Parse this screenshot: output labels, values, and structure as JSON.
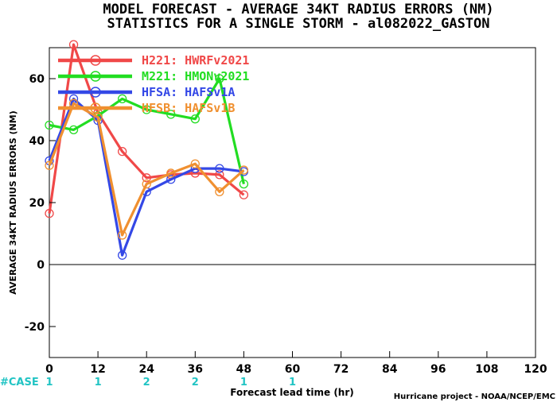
{
  "chart_data": {
    "type": "line",
    "title": [
      "MODEL FORECAST - AVERAGE 34KT RADIUS ERRORS (NM)",
      "STATISTICS FOR A SINGLE STORM - al082022_GASTON"
    ],
    "xlabel": "Forecast lead time (hr)",
    "ylabel": "AVERAGE 34KT RADIUS ERRORS (NM)",
    "xlim": [
      0,
      120
    ],
    "ylim": [
      -30,
      70
    ],
    "xticks": [
      0,
      12,
      24,
      36,
      48,
      60,
      72,
      84,
      96,
      108,
      120
    ],
    "yticks": [
      -20,
      0,
      20,
      40,
      60
    ],
    "zero_line": true,
    "legend_position": "top-left",
    "series": [
      {
        "name": "H221: HWRFv2021",
        "color": "#f04848",
        "x": [
          0,
          6,
          12,
          18,
          24,
          30,
          36,
          42,
          48
        ],
        "values": [
          16.5,
          71,
          49,
          36.5,
          28,
          29,
          29.5,
          29,
          22.5
        ]
      },
      {
        "name": "M221: HMONv2021",
        "color": "#22dd22",
        "x": [
          0,
          6,
          12,
          18,
          24,
          30,
          36,
          42,
          48
        ],
        "values": [
          45,
          43.5,
          48,
          53.5,
          50,
          48.5,
          47,
          60,
          26
        ]
      },
      {
        "name": "HFSA: HAFSv1A",
        "color": "#3448e6",
        "x": [
          0,
          6,
          12,
          18,
          24,
          30,
          36,
          42,
          48
        ],
        "values": [
          33.5,
          53.5,
          46.5,
          3,
          23.5,
          27.5,
          31,
          31,
          30
        ]
      },
      {
        "name": "HFSB: HAFSv1B",
        "color": "#f09030",
        "x": [
          0,
          6,
          12,
          18,
          24,
          30,
          36,
          42,
          48
        ],
        "values": [
          32,
          52,
          47.5,
          9.5,
          26,
          29.5,
          32.5,
          23.5,
          30.5
        ]
      }
    ],
    "case_label": "#CASE",
    "case_counts": [
      {
        "x": 0,
        "count": "1"
      },
      {
        "x": 12,
        "count": "1"
      },
      {
        "x": 24,
        "count": "2"
      },
      {
        "x": 36,
        "count": "2"
      },
      {
        "x": 48,
        "count": "1"
      },
      {
        "x": 60,
        "count": "1"
      }
    ],
    "credit": "Hurricane project - NOAA/NCEP/EMC"
  }
}
